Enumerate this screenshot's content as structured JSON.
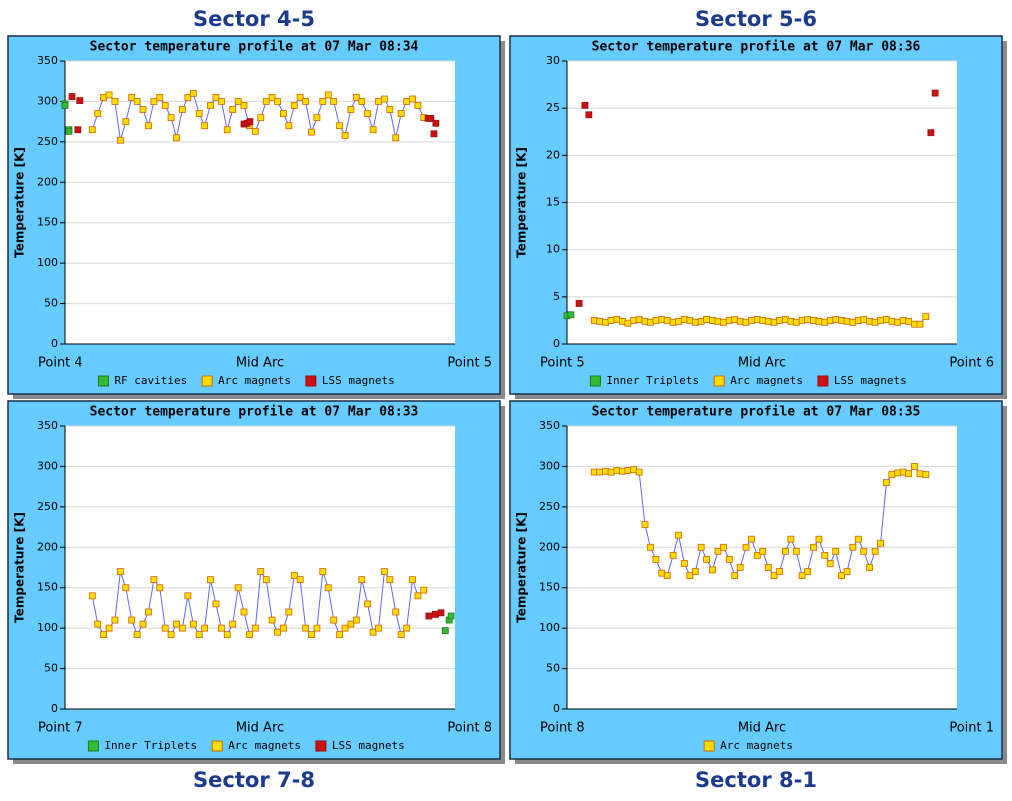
{
  "chart_data": [
    {
      "type": "scatter",
      "sector": "Sector 4-5",
      "title": "Sector temperature profile at 07 Mar 08:34",
      "y_label": "Temperature [K]",
      "xlim": [
        0,
        100
      ],
      "xticks": [
        {
          "value": 0,
          "label": "Point 4"
        },
        {
          "value": 50,
          "label": "Mid Arc"
        },
        {
          "value": 100,
          "label": "Point 5"
        }
      ],
      "ylim": [
        0,
        350
      ],
      "yticks": [
        0,
        50,
        100,
        150,
        200,
        250,
        300,
        350
      ],
      "grid": true,
      "series": [
        {
          "name": "RF cavities",
          "color": "#33bb33",
          "edge": "#227722",
          "x": [
            0,
            0,
            1,
            1
          ],
          "values": [
            297,
            295,
            265,
            263
          ]
        },
        {
          "name": "Arc magnets",
          "color": "#ffdd00",
          "edge": "#cc6600",
          "line": "#6666ee",
          "x": [
            7.0,
            8.4,
            9.9,
            11.3,
            12.8,
            14.2,
            15.6,
            17.1,
            18.5,
            20.0,
            21.4,
            22.8,
            24.3,
            25.7,
            27.2,
            28.6,
            30.1,
            31.5,
            32.9,
            34.4,
            35.8,
            37.3,
            38.7,
            40.1,
            41.6,
            43.0,
            44.4,
            45.9,
            47.3,
            48.8,
            50.2,
            51.6,
            53.1,
            54.5,
            56.0,
            57.4,
            58.8,
            60.3,
            61.7,
            63.2,
            64.6,
            66.1,
            67.5,
            68.9,
            70.4,
            71.8,
            73.3,
            74.7,
            76.1,
            77.6,
            79.0,
            80.4,
            81.9,
            83.3,
            84.8,
            86.2,
            87.6,
            89.1,
            90.5,
            92.0
          ],
          "values": [
            265,
            285,
            305,
            308,
            300,
            252,
            275,
            305,
            300,
            290,
            270,
            300,
            305,
            295,
            280,
            255,
            290,
            305,
            310,
            285,
            270,
            295,
            305,
            300,
            265,
            290,
            300,
            295,
            270,
            263,
            280,
            300,
            305,
            300,
            285,
            270,
            295,
            305,
            300,
            262,
            280,
            300,
            308,
            300,
            270,
            258,
            290,
            305,
            300,
            285,
            265,
            300,
            303,
            290,
            255,
            285,
            300,
            303,
            295,
            280
          ]
        },
        {
          "name": "LSS magnets",
          "color": "#cc1111",
          "edge": "#991111",
          "x": [
            1.8,
            3.3,
            3.8,
            45.9,
            46.7,
            47.4,
            93.1,
            93.8,
            94.6,
            95.1
          ],
          "values": [
            306,
            265,
            301,
            272,
            273,
            275,
            279,
            279,
            260,
            273
          ]
        }
      ]
    },
    {
      "type": "scatter",
      "sector": "Sector 5-6",
      "title": "Sector temperature profile at 07 Mar 08:36",
      "y_label": "Temperature [K]",
      "xlim": [
        0,
        100
      ],
      "xticks": [
        {
          "value": 0,
          "label": "Point 5"
        },
        {
          "value": 50,
          "label": "Mid Arc"
        },
        {
          "value": 100,
          "label": "Point 6"
        }
      ],
      "ylim": [
        0,
        30
      ],
      "yticks": [
        0,
        5,
        10,
        15,
        20,
        25,
        30
      ],
      "grid": true,
      "series": [
        {
          "name": "Inner Triplets",
          "color": "#33bb33",
          "edge": "#227722",
          "x": [
            0,
            1
          ],
          "values": [
            3.0,
            3.1
          ]
        },
        {
          "name": "Arc magnets",
          "color": "#ffdd00",
          "edge": "#cc6600",
          "line": "#6666ee",
          "x": [
            7.0,
            8.4,
            9.9,
            11.3,
            12.8,
            14.2,
            15.6,
            17.1,
            18.5,
            20.0,
            21.4,
            22.8,
            24.3,
            25.7,
            27.2,
            28.6,
            30.1,
            31.5,
            32.9,
            34.4,
            35.8,
            37.3,
            38.7,
            40.1,
            41.6,
            43.0,
            44.4,
            45.9,
            47.3,
            48.8,
            50.2,
            51.6,
            53.1,
            54.5,
            56.0,
            57.4,
            58.8,
            60.3,
            61.7,
            63.2,
            64.6,
            66.1,
            67.5,
            68.9,
            70.4,
            71.8,
            73.3,
            74.7,
            76.1,
            77.6,
            79.0,
            80.4,
            81.9,
            83.3,
            84.8,
            86.2,
            87.6,
            89.1,
            90.5,
            92.0
          ],
          "values": [
            2.5,
            2.4,
            2.3,
            2.5,
            2.6,
            2.4,
            2.2,
            2.5,
            2.6,
            2.4,
            2.3,
            2.5,
            2.6,
            2.5,
            2.3,
            2.4,
            2.6,
            2.5,
            2.3,
            2.4,
            2.6,
            2.5,
            2.4,
            2.3,
            2.5,
            2.6,
            2.4,
            2.3,
            2.5,
            2.6,
            2.5,
            2.4,
            2.3,
            2.5,
            2.6,
            2.4,
            2.3,
            2.5,
            2.6,
            2.5,
            2.4,
            2.3,
            2.5,
            2.6,
            2.5,
            2.4,
            2.3,
            2.5,
            2.6,
            2.4,
            2.3,
            2.5,
            2.6,
            2.4,
            2.3,
            2.5,
            2.4,
            2.1,
            2.1,
            2.9
          ]
        },
        {
          "name": "LSS magnets",
          "color": "#cc1111",
          "edge": "#991111",
          "x": [
            3.1,
            4.6,
            5.6,
            93.3,
            94.4
          ],
          "values": [
            4.3,
            25.3,
            24.3,
            22.4,
            26.6
          ]
        }
      ]
    },
    {
      "type": "scatter",
      "sector": "Sector 7-8",
      "title": "Sector temperature profile at 07 Mar 08:33",
      "y_label": "Temperature [K]",
      "xlim": [
        0,
        100
      ],
      "xticks": [
        {
          "value": 0,
          "label": "Point 7"
        },
        {
          "value": 50,
          "label": "Mid Arc"
        },
        {
          "value": 100,
          "label": "Point 8"
        }
      ],
      "ylim": [
        0,
        350
      ],
      "yticks": [
        0,
        50,
        100,
        150,
        200,
        250,
        300,
        350
      ],
      "grid": true,
      "series": [
        {
          "name": "Inner Triplets",
          "color": "#33bb33",
          "edge": "#227722",
          "x": [
            97.5,
            98.5,
            99
          ],
          "values": [
            97,
            110,
            115
          ]
        },
        {
          "name": "Arc magnets",
          "color": "#ffdd00",
          "edge": "#cc6600",
          "line": "#6666ee",
          "x": [
            7.0,
            8.4,
            9.9,
            11.3,
            12.8,
            14.2,
            15.6,
            17.1,
            18.5,
            20.0,
            21.4,
            22.8,
            24.3,
            25.7,
            27.2,
            28.6,
            30.1,
            31.5,
            32.9,
            34.4,
            35.8,
            37.3,
            38.7,
            40.1,
            41.6,
            43.0,
            44.4,
            45.9,
            47.3,
            48.8,
            50.2,
            51.6,
            53.1,
            54.5,
            56.0,
            57.4,
            58.8,
            60.3,
            61.7,
            63.2,
            64.6,
            66.1,
            67.5,
            68.9,
            70.4,
            71.8,
            73.3,
            74.7,
            76.1,
            77.6,
            79.0,
            80.4,
            81.9,
            83.3,
            84.8,
            86.2,
            87.6,
            89.1,
            90.5,
            92.0
          ],
          "values": [
            140,
            105,
            92,
            100,
            110,
            170,
            150,
            110,
            92,
            105,
            120,
            160,
            150,
            100,
            92,
            105,
            100,
            140,
            105,
            92,
            100,
            160,
            130,
            100,
            92,
            105,
            150,
            120,
            92,
            100,
            170,
            160,
            110,
            95,
            100,
            120,
            165,
            160,
            100,
            92,
            100,
            170,
            150,
            110,
            92,
            100,
            105,
            110,
            160,
            130,
            95,
            100,
            170,
            160,
            120,
            92,
            100,
            160,
            140,
            147
          ]
        },
        {
          "name": "LSS magnets",
          "color": "#cc1111",
          "edge": "#991111",
          "x": [
            93.3,
            95.0,
            96.4
          ],
          "values": [
            115,
            117,
            119
          ]
        }
      ]
    },
    {
      "type": "scatter",
      "sector": "Sector 8-1",
      "title": "Sector temperature profile at 07 Mar 08:35",
      "y_label": "Temperature [K]",
      "xlim": [
        0,
        100
      ],
      "xticks": [
        {
          "value": 0,
          "label": "Point 8"
        },
        {
          "value": 50,
          "label": "Mid Arc"
        },
        {
          "value": 100,
          "label": "Point 1"
        }
      ],
      "ylim": [
        0,
        350
      ],
      "yticks": [
        0,
        50,
        100,
        150,
        200,
        250,
        300,
        350
      ],
      "grid": true,
      "series": [
        {
          "name": "Arc magnets",
          "color": "#ffdd00",
          "edge": "#cc6600",
          "line": "#6666ee",
          "x": [
            7.0,
            8.4,
            9.9,
            11.3,
            12.8,
            14.2,
            15.6,
            17.1,
            18.5,
            20.0,
            21.4,
            22.8,
            24.3,
            25.7,
            27.2,
            28.6,
            30.1,
            31.5,
            32.9,
            34.4,
            35.8,
            37.3,
            38.7,
            40.1,
            41.6,
            43.0,
            44.4,
            45.9,
            47.3,
            48.8,
            50.2,
            51.6,
            53.1,
            54.5,
            56.0,
            57.4,
            58.8,
            60.3,
            61.7,
            63.2,
            64.6,
            66.1,
            67.5,
            68.9,
            70.4,
            71.8,
            73.3,
            74.7,
            76.1,
            77.6,
            79.0,
            80.4,
            81.9,
            83.3,
            84.8,
            86.2,
            87.6,
            89.1,
            90.5,
            92.0
          ],
          "values": [
            293,
            293,
            294,
            293,
            295,
            294,
            295,
            296,
            293,
            228,
            200,
            185,
            168,
            165,
            190,
            215,
            180,
            165,
            170,
            200,
            185,
            172,
            195,
            200,
            185,
            165,
            175,
            200,
            210,
            190,
            195,
            175,
            165,
            170,
            195,
            210,
            195,
            165,
            170,
            200,
            210,
            190,
            180,
            195,
            165,
            170,
            200,
            210,
            195,
            175,
            195,
            205,
            280,
            290,
            292,
            293,
            291,
            300,
            291,
            290
          ]
        }
      ]
    }
  ]
}
